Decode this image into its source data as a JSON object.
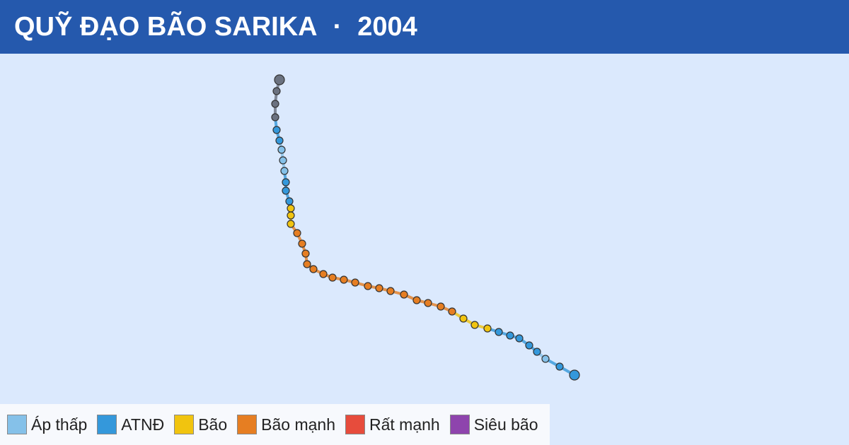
{
  "header": {
    "title": "QUỸ ĐẠO BÃO SARIKA",
    "separator": "·",
    "year": "2004"
  },
  "legend": [
    {
      "label": "Áp thấp",
      "color": "#85c1e9"
    },
    {
      "label": "ATNĐ",
      "color": "#3498db"
    },
    {
      "label": "Bão",
      "color": "#f1c40f"
    },
    {
      "label": "Bão mạnh",
      "color": "#e67e22"
    },
    {
      "label": "Rất mạnh",
      "color": "#e74c3c"
    },
    {
      "label": "Siêu bão",
      "color": "#8e44ad"
    }
  ]
}
